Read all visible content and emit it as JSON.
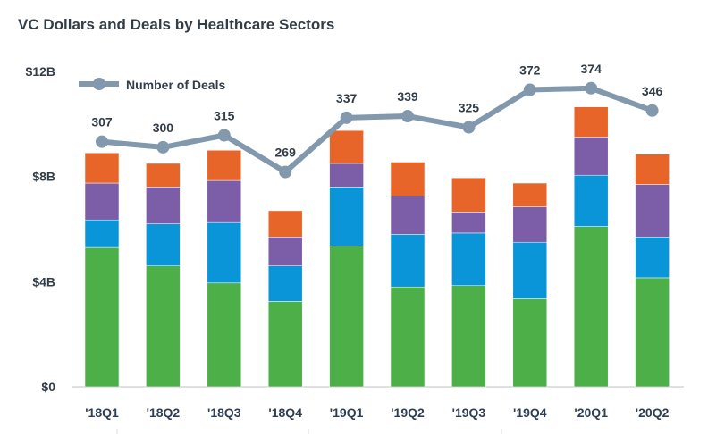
{
  "chart_data": {
    "type": "bar",
    "stacked": true,
    "title": "VC Dollars and Deals by Healthcare Sectors",
    "xlabel": "",
    "ylabel": "",
    "categories": [
      "'18Q1",
      "'18Q2",
      "'18Q3",
      "'18Q4",
      "'19Q1",
      "'19Q2",
      "'19Q3",
      "'19Q4",
      "'20Q1",
      "'20Q2"
    ],
    "ylim": [
      0,
      12
    ],
    "yticks": [
      0,
      4,
      8,
      12
    ],
    "ytick_labels": [
      "$0",
      "$4B",
      "$8B",
      "$12B"
    ],
    "grid": false,
    "series": [
      {
        "color": "#4caf47",
        "values": [
          5.3,
          4.6,
          3.95,
          3.25,
          5.35,
          3.8,
          3.85,
          3.35,
          6.1,
          4.15
        ]
      },
      {
        "color": "#0a95d9",
        "values": [
          1.05,
          1.6,
          2.3,
          1.35,
          2.25,
          2.0,
          2.0,
          2.15,
          1.95,
          1.55
        ]
      },
      {
        "color": "#7b5ea7",
        "values": [
          1.4,
          1.4,
          1.6,
          1.1,
          0.9,
          1.45,
          0.8,
          1.35,
          1.45,
          2.0
        ]
      },
      {
        "color": "#e8652a",
        "values": [
          1.15,
          0.9,
          1.15,
          1.0,
          1.25,
          1.3,
          1.3,
          0.9,
          1.15,
          1.15
        ]
      }
    ],
    "line_series": {
      "name": "Number of Deals",
      "type": "line",
      "color": "#8298ad",
      "values": [
        307,
        300,
        315,
        269,
        337,
        339,
        325,
        372,
        374,
        346
      ],
      "ylim": [
        0,
        395
      ]
    },
    "legend": "top-left"
  }
}
